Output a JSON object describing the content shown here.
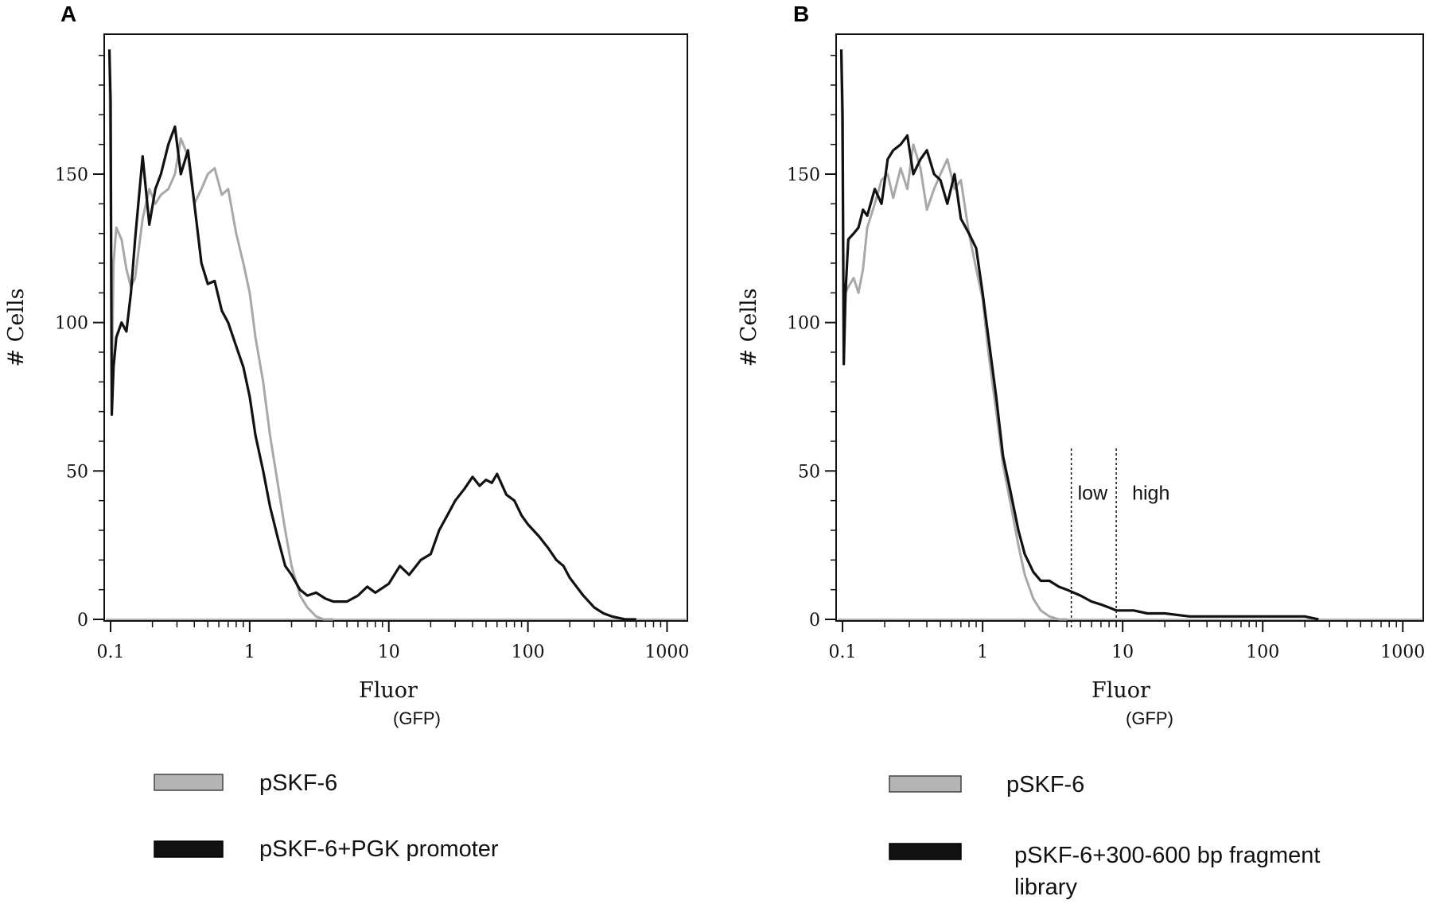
{
  "chart_data": [
    {
      "panel": "A",
      "type": "line",
      "xlabel": "Fluor",
      "xlabel_sub": "(GFP)",
      "ylabel": "# Cells",
      "x_scale": "log",
      "xlim": [
        0.09,
        1400
      ],
      "ylim": [
        0,
        195
      ],
      "x_ticks": [
        0.1,
        1,
        10,
        100,
        1000
      ],
      "x_tick_labels": [
        "0.1",
        "1",
        "10",
        "100",
        "1000"
      ],
      "y_ticks": [
        0,
        50,
        100,
        150
      ],
      "y_tick_labels": [
        "0",
        "50",
        "100",
        "150"
      ],
      "series": [
        {
          "name": "pSKF-6",
          "color": "#a8a8a8",
          "x": [
            0.098,
            0.1,
            0.102,
            0.105,
            0.11,
            0.12,
            0.13,
            0.14,
            0.15,
            0.17,
            0.19,
            0.21,
            0.23,
            0.26,
            0.29,
            0.32,
            0.36,
            0.4,
            0.45,
            0.5,
            0.56,
            0.63,
            0.7,
            0.8,
            0.9,
            1.0,
            1.1,
            1.25,
            1.4,
            1.6,
            1.8,
            2.0,
            2.3,
            2.6,
            3.0,
            3.4,
            4.0
          ],
          "y": [
            190,
            150,
            80,
            120,
            132,
            128,
            118,
            112,
            115,
            135,
            145,
            140,
            143,
            145,
            150,
            162,
            156,
            140,
            145,
            150,
            152,
            143,
            145,
            130,
            120,
            110,
            95,
            80,
            62,
            45,
            30,
            18,
            8,
            4,
            1,
            0,
            0
          ]
        },
        {
          "name": "pSKF-6+PGK promoter",
          "color": "#111111",
          "x": [
            0.098,
            0.1,
            0.102,
            0.105,
            0.11,
            0.12,
            0.13,
            0.14,
            0.15,
            0.17,
            0.19,
            0.21,
            0.23,
            0.26,
            0.29,
            0.32,
            0.36,
            0.4,
            0.45,
            0.5,
            0.56,
            0.63,
            0.7,
            0.8,
            0.9,
            1.0,
            1.1,
            1.25,
            1.4,
            1.6,
            1.8,
            2.0,
            2.3,
            2.6,
            3.0,
            3.5,
            4.0,
            5.0,
            6.0,
            7.0,
            8.0,
            10,
            12,
            14,
            17,
            20,
            23,
            27,
            30,
            35,
            40,
            45,
            50,
            55,
            60,
            70,
            80,
            90,
            100,
            120,
            140,
            160,
            180,
            200,
            250,
            300,
            350,
            400,
            500,
            600
          ],
          "y": [
            192,
            175,
            69,
            85,
            95,
            100,
            97,
            110,
            128,
            156,
            133,
            145,
            150,
            160,
            166,
            150,
            158,
            140,
            120,
            113,
            114,
            104,
            100,
            92,
            85,
            75,
            62,
            50,
            38,
            27,
            18,
            15,
            10,
            8,
            9,
            7,
            6,
            6,
            8,
            11,
            9,
            12,
            18,
            15,
            20,
            22,
            30,
            36,
            40,
            44,
            48,
            45,
            47,
            46,
            49,
            42,
            40,
            35,
            32,
            28,
            24,
            20,
            18,
            14,
            8,
            4,
            2,
            1,
            0,
            0
          ]
        }
      ],
      "legend": [
        "pSKF-6",
        "pSKF-6+PGK promoter"
      ]
    },
    {
      "panel": "B",
      "type": "line",
      "xlabel": "Fluor",
      "xlabel_sub": "(GFP)",
      "ylabel": "# Cells",
      "x_scale": "log",
      "xlim": [
        0.09,
        1400
      ],
      "ylim": [
        0,
        195
      ],
      "x_ticks": [
        0.1,
        1,
        10,
        100,
        1000
      ],
      "x_tick_labels": [
        "0.1",
        "1",
        "10",
        "100",
        "1000"
      ],
      "y_ticks": [
        0,
        50,
        100,
        150
      ],
      "y_tick_labels": [
        "0",
        "50",
        "100",
        "150"
      ],
      "gates": [
        {
          "x": 4.3,
          "label": "low"
        },
        {
          "x": 9.0,
          "label": "high"
        }
      ],
      "series": [
        {
          "name": "pSKF-6",
          "color": "#a8a8a8",
          "x": [
            0.098,
            0.1,
            0.102,
            0.105,
            0.11,
            0.12,
            0.13,
            0.14,
            0.15,
            0.17,
            0.19,
            0.21,
            0.23,
            0.26,
            0.29,
            0.32,
            0.36,
            0.4,
            0.45,
            0.5,
            0.56,
            0.63,
            0.7,
            0.8,
            0.9,
            1.0,
            1.1,
            1.25,
            1.4,
            1.6,
            1.8,
            2.0,
            2.3,
            2.6,
            3.0,
            3.5,
            4.0
          ],
          "y": [
            190,
            150,
            88,
            110,
            112,
            115,
            110,
            118,
            132,
            140,
            148,
            150,
            142,
            152,
            145,
            160,
            152,
            138,
            145,
            150,
            155,
            145,
            148,
            130,
            118,
            108,
            90,
            70,
            52,
            38,
            25,
            15,
            7,
            3,
            1,
            0,
            0
          ]
        },
        {
          "name": "pSKF-6+300-600 bp fragment library",
          "color": "#111111",
          "x": [
            0.098,
            0.1,
            0.102,
            0.105,
            0.11,
            0.12,
            0.13,
            0.14,
            0.15,
            0.17,
            0.19,
            0.21,
            0.23,
            0.26,
            0.29,
            0.32,
            0.36,
            0.4,
            0.45,
            0.5,
            0.56,
            0.63,
            0.7,
            0.8,
            0.9,
            1.0,
            1.1,
            1.25,
            1.4,
            1.6,
            1.8,
            2.0,
            2.3,
            2.6,
            3.0,
            3.5,
            4.0,
            5.0,
            6.0,
            7.0,
            8.0,
            9.0,
            10,
            12,
            15,
            20,
            30,
            40,
            60,
            80,
            100,
            150,
            200,
            250
          ],
          "y": [
            192,
            170,
            86,
            110,
            128,
            130,
            132,
            138,
            136,
            145,
            140,
            155,
            158,
            160,
            163,
            150,
            155,
            158,
            150,
            148,
            140,
            150,
            135,
            130,
            125,
            110,
            95,
            75,
            55,
            42,
            30,
            22,
            16,
            13,
            13,
            11,
            10,
            8,
            6,
            5,
            4,
            3,
            3,
            3,
            2,
            2,
            1,
            1,
            1,
            1,
            1,
            1,
            1,
            0
          ]
        }
      ],
      "legend": [
        "pSKF-6",
        "pSKF-6+300-600 bp fragment library"
      ]
    }
  ],
  "panels": {
    "a": {
      "letter": "A",
      "legend": [
        {
          "label": "pSKF-6",
          "color": "#b4b4b4"
        },
        {
          "label": "pSKF-6+PGK promoter",
          "color": "#111111"
        }
      ]
    },
    "b": {
      "letter": "B",
      "legend": [
        {
          "label": "pSKF-6",
          "color": "#b4b4b4"
        },
        {
          "label": "pSKF-6+300-600 bp fragment",
          "label_line2": "library",
          "color": "#111111"
        }
      ]
    }
  }
}
